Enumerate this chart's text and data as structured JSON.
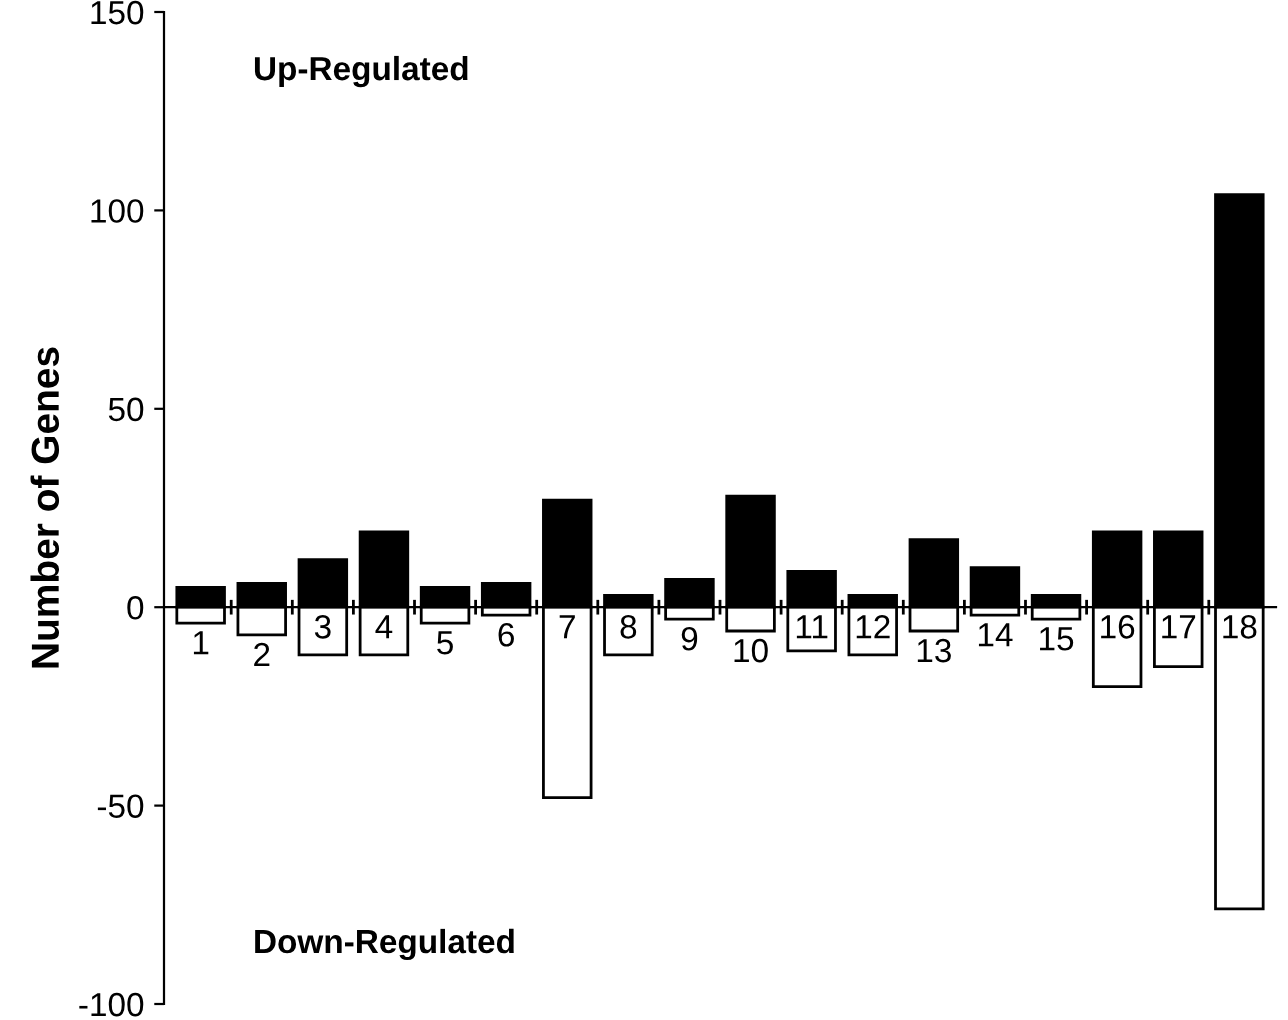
{
  "chart_data": {
    "type": "bar",
    "ylabel": "Number of Genes",
    "categories": [
      "1",
      "2",
      "3",
      "4",
      "5",
      "6",
      "7",
      "8",
      "9",
      "10",
      "11",
      "12",
      "13",
      "14",
      "15",
      "16",
      "17",
      "18"
    ],
    "series": [
      {
        "color": "#000000",
        "values": [
          5,
          6,
          12,
          19,
          5,
          6,
          27,
          3,
          7,
          28,
          9,
          3,
          17,
          10,
          3,
          19,
          19,
          104
        ]
      },
      {
        "color": "#ffffff",
        "values": [
          -4,
          -7,
          -12,
          -12,
          -4,
          -2,
          -48,
          -12,
          -3,
          -6,
          -11,
          -12,
          -6,
          -2,
          -3,
          -20,
          -15,
          -76
        ]
      }
    ],
    "ylim": [
      -100,
      150
    ],
    "yticks": [
      -100,
      -50,
      0,
      50,
      100,
      150
    ],
    "grid": false,
    "stacked": true,
    "annotations": [
      "Up-Regulated",
      "Down-Regulated"
    ]
  }
}
